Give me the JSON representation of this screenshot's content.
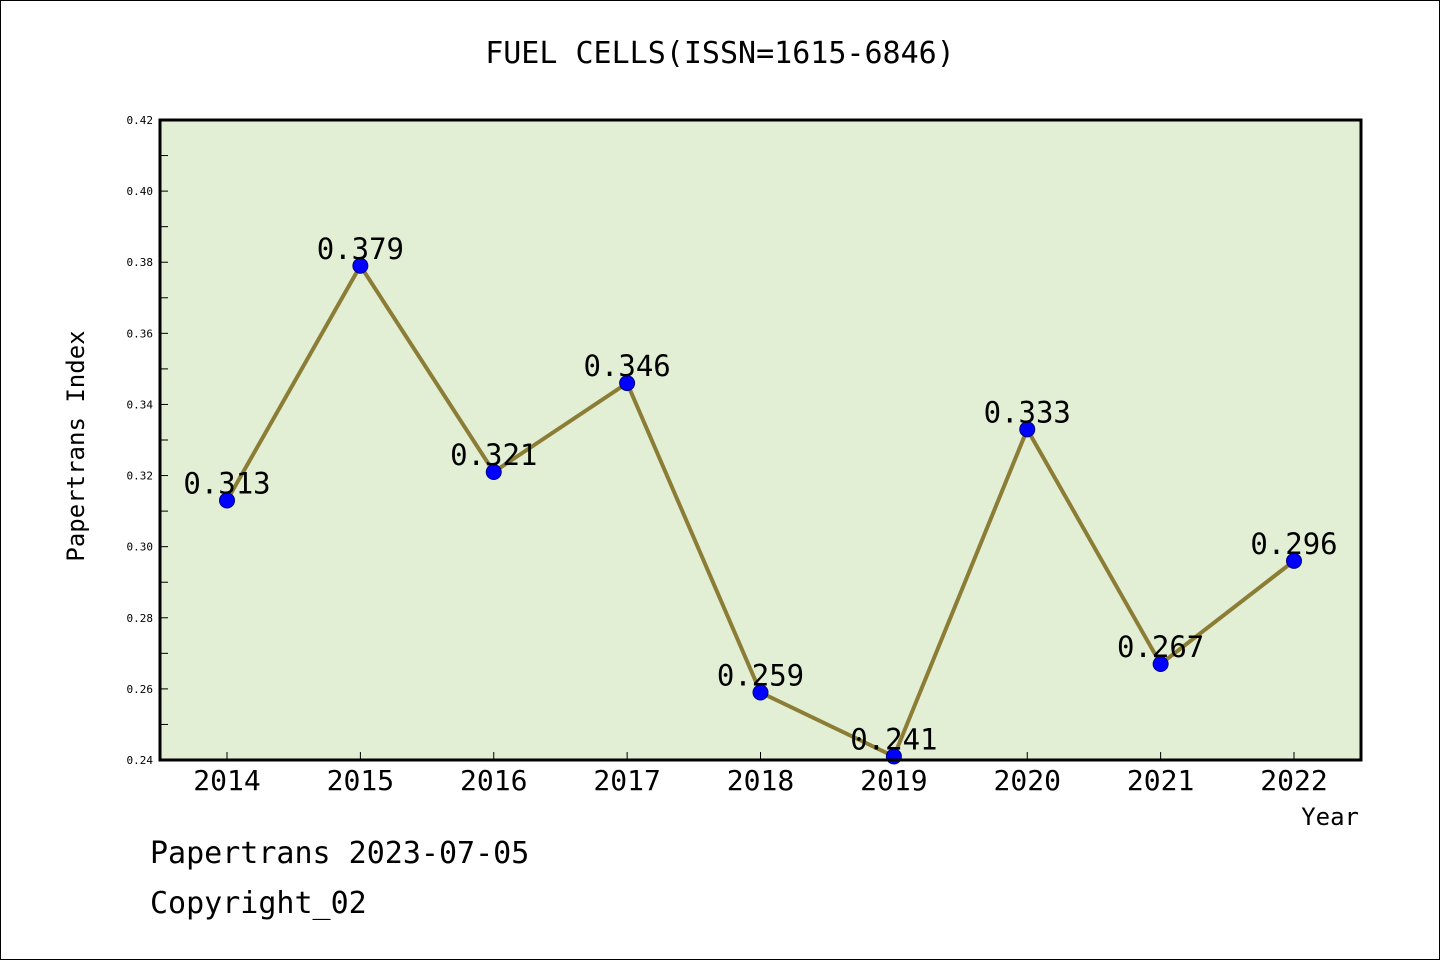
{
  "chart_data": {
    "type": "line",
    "title": "FUEL CELLS(ISSN=1615-6846)",
    "xlabel": "Year",
    "ylabel": "Papertrans Index",
    "categories": [
      "2014",
      "2015",
      "2016",
      "2017",
      "2018",
      "2019",
      "2020",
      "2021",
      "2022"
    ],
    "series": [
      {
        "values": [
          0.313,
          0.379,
          0.321,
          0.346,
          0.259,
          0.241,
          0.333,
          0.267,
          0.296
        ],
        "labels": [
          "0.313",
          "0.379",
          "0.321",
          "0.346",
          "0.259",
          "0.241",
          "0.333",
          "0.267",
          "0.296"
        ]
      }
    ],
    "ylim": [
      0.24,
      0.42
    ],
    "yticks": [
      "0.24",
      "0.26",
      "0.28",
      "0.30",
      "0.32",
      "0.34",
      "0.36",
      "0.38",
      "0.40",
      "0.42"
    ],
    "grid": false,
    "colors": {
      "plot_background": "#e2efd5",
      "line": "#8b7d35",
      "marker": "#0000ff"
    }
  },
  "footer": {
    "date_line": "Papertrans 2023-07-05",
    "copyright_line": "Copyright_02"
  }
}
